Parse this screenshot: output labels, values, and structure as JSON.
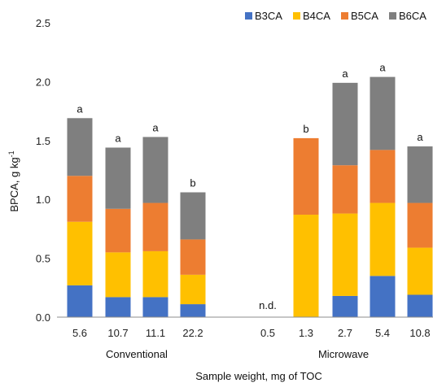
{
  "chart_data": {
    "type": "bar",
    "stacked": true,
    "title": "",
    "xlabel": "Sample weight, mg of TOC",
    "ylabel_main": "BPCA, g kg",
    "ylabel_sup": "-1",
    "ylim": [
      0,
      2.5
    ],
    "yticks": [
      "0.0",
      "0.5",
      "1.0",
      "1.5",
      "2.0",
      "2.5"
    ],
    "legend_position": "top-right",
    "groups": [
      "Conventional",
      "Microwave"
    ],
    "categories": [
      "5.6",
      "10.7",
      "11.1",
      "22.2",
      "0.5",
      "1.3",
      "2.7",
      "5.4",
      "10.8"
    ],
    "category_group": [
      0,
      0,
      0,
      0,
      1,
      1,
      1,
      1,
      1
    ],
    "series": [
      {
        "name": "B3CA",
        "color": "#4472C4",
        "values": [
          0.27,
          0.17,
          0.17,
          0.11,
          0,
          0,
          0.18,
          0.35,
          0.19
        ]
      },
      {
        "name": "B4CA",
        "color": "#FFC000",
        "values": [
          0.54,
          0.38,
          0.39,
          0.25,
          0,
          0.87,
          0.7,
          0.62,
          0.4
        ]
      },
      {
        "name": "B5CA",
        "color": "#ED7D31",
        "values": [
          0.39,
          0.37,
          0.41,
          0.3,
          0,
          0.65,
          0.41,
          0.45,
          0.38
        ]
      },
      {
        "name": "B6CA",
        "color": "#7F7F7F",
        "values": [
          0.49,
          0.52,
          0.56,
          0.4,
          0,
          0,
          0.7,
          0.62,
          0.48
        ]
      }
    ],
    "annotations": [
      "a",
      "a",
      "a",
      "b",
      "n.d.",
      "b",
      "a",
      "a",
      "a"
    ],
    "grid": false
  }
}
